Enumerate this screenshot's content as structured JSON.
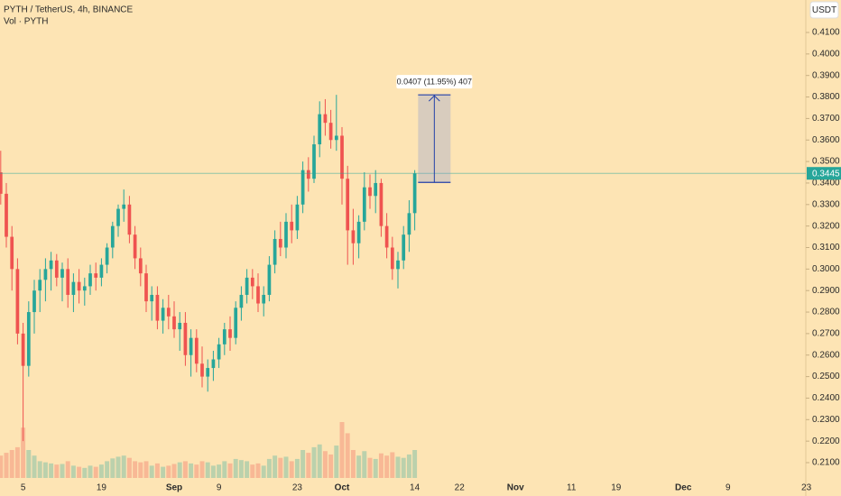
{
  "chart_data": {
    "type": "candlestick",
    "title": "PYTH / TetherUS, 4h, BINANCE",
    "subtitle": "Vol · PYTH",
    "currency": "USDT",
    "up_color": "#26a69a",
    "down_color": "#ef5350",
    "open": [
      0.345,
      0.335,
      0.315,
      0.3,
      0.27,
      0.255,
      0.28,
      0.29,
      0.295,
      0.3,
      0.304,
      0.296,
      0.3,
      0.288,
      0.294,
      0.29,
      0.292,
      0.298,
      0.296,
      0.302,
      0.31,
      0.32,
      0.328,
      0.33,
      0.316,
      0.305,
      0.298,
      0.285,
      0.288,
      0.276,
      0.282,
      0.278,
      0.272,
      0.275,
      0.26,
      0.268,
      0.256,
      0.25,
      0.254,
      0.258,
      0.265,
      0.272,
      0.268,
      0.282,
      0.288,
      0.296,
      0.292,
      0.284,
      0.288,
      0.302,
      0.314,
      0.31,
      0.322,
      0.318,
      0.33,
      0.346,
      0.342,
      0.358,
      0.372,
      0.368,
      0.36,
      0.362,
      0.342,
      0.318,
      0.312,
      0.322,
      0.338,
      0.334,
      0.34,
      0.32,
      0.31,
      0.3,
      0.304,
      0.316,
      0.326
    ],
    "high": [
      0.355,
      0.34,
      0.32,
      0.305,
      0.275,
      0.285,
      0.295,
      0.3,
      0.305,
      0.308,
      0.307,
      0.303,
      0.305,
      0.298,
      0.3,
      0.296,
      0.302,
      0.303,
      0.305,
      0.312,
      0.322,
      0.33,
      0.337,
      0.334,
      0.32,
      0.31,
      0.302,
      0.292,
      0.292,
      0.286,
      0.288,
      0.285,
      0.28,
      0.28,
      0.272,
      0.272,
      0.264,
      0.258,
      0.262,
      0.268,
      0.275,
      0.278,
      0.285,
      0.292,
      0.3,
      0.3,
      0.298,
      0.292,
      0.306,
      0.318,
      0.322,
      0.326,
      0.33,
      0.334,
      0.35,
      0.352,
      0.362,
      0.378,
      0.379,
      0.374,
      0.381,
      0.366,
      0.348,
      0.328,
      0.325,
      0.345,
      0.344,
      0.346,
      0.342,
      0.326,
      0.315,
      0.308,
      0.32,
      0.332,
      0.346
    ],
    "low": [
      0.33,
      0.31,
      0.29,
      0.265,
      0.22,
      0.25,
      0.27,
      0.28,
      0.285,
      0.29,
      0.292,
      0.285,
      0.282,
      0.28,
      0.284,
      0.283,
      0.288,
      0.29,
      0.292,
      0.298,
      0.305,
      0.315,
      0.322,
      0.312,
      0.3,
      0.292,
      0.28,
      0.276,
      0.272,
      0.27,
      0.272,
      0.268,
      0.262,
      0.255,
      0.25,
      0.252,
      0.245,
      0.243,
      0.248,
      0.254,
      0.26,
      0.262,
      0.265,
      0.276,
      0.284,
      0.286,
      0.28,
      0.278,
      0.285,
      0.298,
      0.306,
      0.305,
      0.312,
      0.314,
      0.326,
      0.336,
      0.34,
      0.352,
      0.362,
      0.356,
      0.355,
      0.33,
      0.302,
      0.302,
      0.305,
      0.318,
      0.328,
      0.326,
      0.315,
      0.305,
      0.295,
      0.291,
      0.3,
      0.308,
      0.318
    ],
    "close": [
      0.335,
      0.315,
      0.3,
      0.27,
      0.255,
      0.28,
      0.29,
      0.295,
      0.3,
      0.304,
      0.296,
      0.3,
      0.288,
      0.294,
      0.29,
      0.292,
      0.298,
      0.296,
      0.302,
      0.31,
      0.32,
      0.328,
      0.33,
      0.316,
      0.305,
      0.298,
      0.285,
      0.288,
      0.276,
      0.282,
      0.278,
      0.272,
      0.275,
      0.26,
      0.268,
      0.256,
      0.25,
      0.254,
      0.258,
      0.265,
      0.272,
      0.268,
      0.282,
      0.288,
      0.296,
      0.292,
      0.284,
      0.288,
      0.302,
      0.314,
      0.31,
      0.322,
      0.318,
      0.33,
      0.346,
      0.342,
      0.358,
      0.372,
      0.368,
      0.36,
      0.362,
      0.342,
      0.318,
      0.312,
      0.322,
      0.338,
      0.334,
      0.34,
      0.32,
      0.31,
      0.3,
      0.304,
      0.316,
      0.326,
      0.3445
    ],
    "volume": [
      40,
      45,
      50,
      55,
      90,
      50,
      40,
      30,
      28,
      26,
      24,
      25,
      30,
      22,
      20,
      18,
      22,
      20,
      24,
      30,
      35,
      38,
      40,
      36,
      30,
      28,
      30,
      22,
      26,
      20,
      22,
      25,
      28,
      30,
      26,
      24,
      30,
      28,
      22,
      24,
      30,
      26,
      34,
      32,
      30,
      24,
      26,
      22,
      34,
      40,
      36,
      38,
      30,
      34,
      50,
      45,
      55,
      60,
      48,
      42,
      58,
      100,
      80,
      50,
      40,
      48,
      36,
      34,
      44,
      40,
      46,
      38,
      36,
      42,
      50
    ],
    "last_price": 0.3445,
    "measure": {
      "low": 0.3403,
      "high": 0.381,
      "label": "0.0407 (11.95%) 407"
    },
    "ylim": [
      0.2058,
      0.4158
    ],
    "yticks": [
      {
        "value": 0.41,
        "label": "0.4100"
      },
      {
        "value": 0.4,
        "label": "0.4000"
      },
      {
        "value": 0.39,
        "label": "0.3900"
      },
      {
        "value": 0.38,
        "label": "0.3800"
      },
      {
        "value": 0.37,
        "label": "0.3700"
      },
      {
        "value": 0.36,
        "label": "0.3600"
      },
      {
        "value": 0.35,
        "label": "0.3500"
      },
      {
        "value": 0.34,
        "label": "0.3400"
      },
      {
        "value": 0.33,
        "label": "0.3300"
      },
      {
        "value": 0.32,
        "label": "0.3200"
      },
      {
        "value": 0.31,
        "label": "0.3100"
      },
      {
        "value": 0.3,
        "label": "0.3000"
      },
      {
        "value": 0.29,
        "label": "0.2900"
      },
      {
        "value": 0.28,
        "label": "0.2800"
      },
      {
        "value": 0.27,
        "label": "0.2700"
      },
      {
        "value": 0.26,
        "label": "0.2600"
      },
      {
        "value": 0.25,
        "label": "0.2500"
      },
      {
        "value": 0.24,
        "label": "0.2400"
      },
      {
        "value": 0.23,
        "label": "0.2300"
      },
      {
        "value": 0.22,
        "label": "0.2200"
      },
      {
        "value": 0.21,
        "label": "0.2100"
      }
    ],
    "xlim": [
      -0.13,
      143.9
    ],
    "xticks": [
      {
        "value": 4,
        "label": "5"
      },
      {
        "value": 18,
        "label": "19"
      },
      {
        "value": 31,
        "label": "Sep"
      },
      {
        "value": 39,
        "label": "9"
      },
      {
        "value": 53,
        "label": "23"
      },
      {
        "value": 61,
        "label": "Oct"
      },
      {
        "value": 74,
        "label": "14"
      },
      {
        "value": 82,
        "label": "22"
      },
      {
        "value": 92,
        "label": "Nov"
      },
      {
        "value": 102,
        "label": "11"
      },
      {
        "value": 110,
        "label": "19"
      },
      {
        "value": 122,
        "label": "Dec"
      },
      {
        "value": 130,
        "label": "9"
      },
      {
        "value": 144,
        "label": "23"
      }
    ]
  }
}
